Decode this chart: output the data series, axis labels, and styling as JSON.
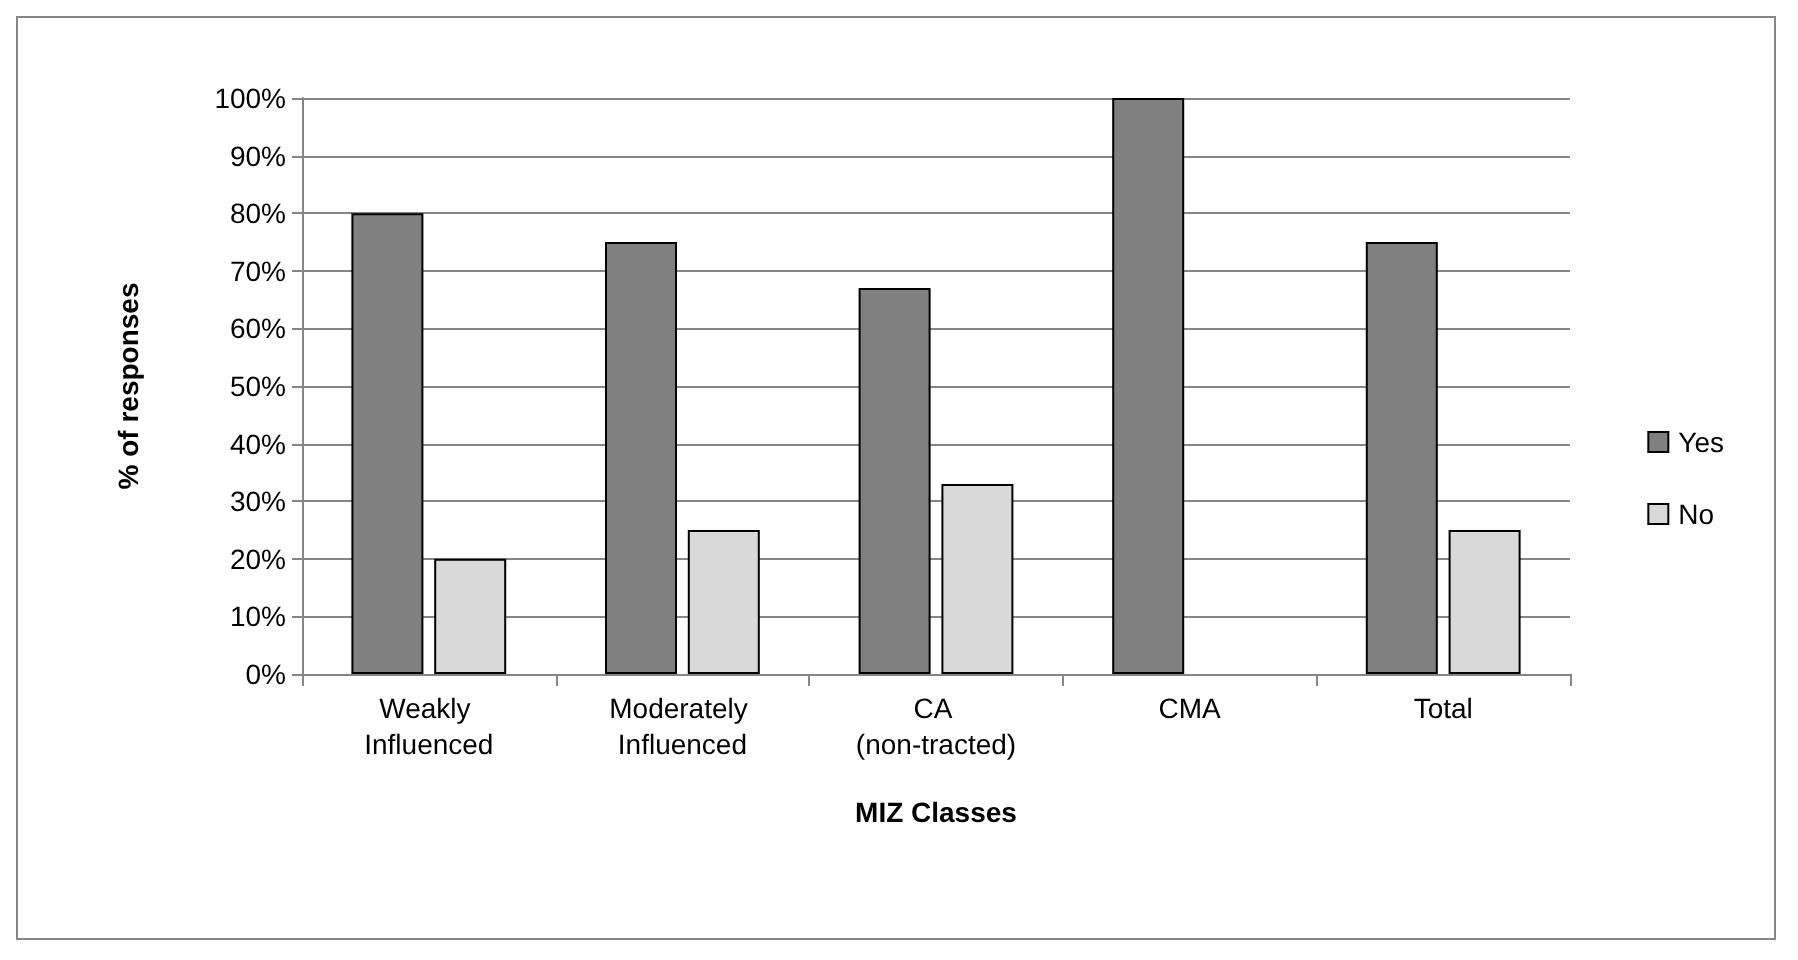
{
  "chart_data": {
    "type": "bar",
    "xlabel": "MIZ Classes",
    "ylabel": "% of responses",
    "categories": [
      "Weakly Influenced",
      "Moderately Influenced",
      "CA (non-tracted)",
      "CMA",
      "Total"
    ],
    "series": [
      {
        "name": "Yes",
        "color": "#808080",
        "values": [
          80,
          75,
          67,
          100,
          75
        ]
      },
      {
        "name": "No",
        "color": "#d9d9d9",
        "values": [
          20,
          25,
          33,
          null,
          25
        ]
      }
    ],
    "ylim": [
      0,
      100
    ],
    "yticks": [
      {
        "value": 0,
        "label": "0%"
      },
      {
        "value": 10,
        "label": "10%"
      },
      {
        "value": 20,
        "label": "20%"
      },
      {
        "value": 30,
        "label": "30%"
      },
      {
        "value": 40,
        "label": "40%"
      },
      {
        "value": 50,
        "label": "50%"
      },
      {
        "value": 60,
        "label": "60%"
      },
      {
        "value": 70,
        "label": "70%"
      },
      {
        "value": 80,
        "label": "80%"
      },
      {
        "value": 90,
        "label": "90%"
      },
      {
        "value": 100,
        "label": "100%"
      }
    ],
    "grid": "y",
    "legend": "right"
  }
}
